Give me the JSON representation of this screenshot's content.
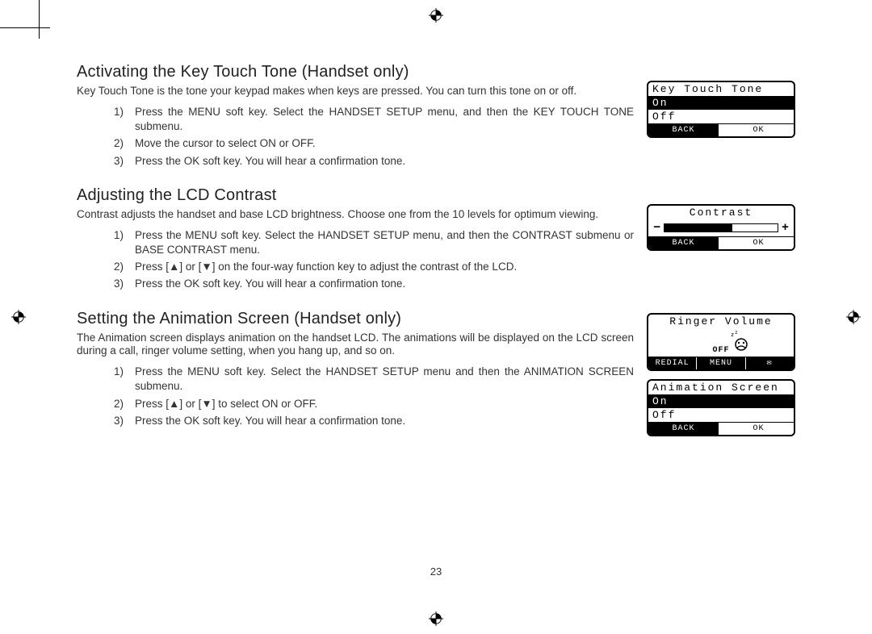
{
  "page_number": "23",
  "sections": [
    {
      "heading": "Activating the Key Touch Tone (Handset only)",
      "intro": "Key Touch Tone is the tone your keypad makes when keys are pressed. You can turn this tone on or off.",
      "steps": [
        "Press the MENU soft key. Select the HANDSET SETUP menu, and then the KEY TOUCH TONE submenu.",
        "Move the cursor to select ON or OFF.",
        "Press the OK soft key. You will hear a confirmation tone."
      ]
    },
    {
      "heading": "Adjusting the LCD Contrast",
      "intro": "Contrast adjusts the handset and base LCD brightness. Choose one from the 10 levels for optimum viewing.",
      "steps": [
        "Press the MENU soft key. Select the HANDSET SETUP menu, and then the CONTRAST submenu or BASE CONTRAST menu.",
        "Press [▲] or [▼] on the four-way function key to adjust the contrast of the LCD.",
        "Press the OK soft key. You will hear a confirmation tone."
      ]
    },
    {
      "heading": "Setting the Animation Screen (Handset only)",
      "intro": "The Animation screen displays animation on the handset LCD. The animations will be displayed on the LCD screen during a call, ringer volume setting, when you hang up, and so on.",
      "steps": [
        "Press the MENU soft key. Select the HANDSET SETUP menu and then the ANIMATION SCREEN submenu.",
        "Press [▲] or [▼] to select ON or OFF.",
        "Press the OK soft key. You will hear a confirmation tone."
      ]
    }
  ],
  "lcd_screens": {
    "key_touch_tone": {
      "title": "Key Touch Tone",
      "options": [
        "On",
        "Off"
      ],
      "selected_index": 0,
      "softkeys": [
        "BACK",
        "OK"
      ]
    },
    "contrast": {
      "title": "Contrast",
      "fill_percent": 60,
      "minus": "−",
      "plus": "+",
      "softkeys": [
        "BACK",
        "OK"
      ]
    },
    "ringer_volume": {
      "title": "Ringer Volume",
      "off_label": "OFF",
      "softkeys": [
        "REDIAL",
        "MENU",
        "✉"
      ]
    },
    "animation_screen": {
      "title": "Animation Screen",
      "options": [
        "On",
        "Off"
      ],
      "selected_index": 0,
      "softkeys": [
        "BACK",
        "OK"
      ]
    }
  },
  "colors": {
    "text": "#333333",
    "lcd_fg": "#000000",
    "lcd_bg": "#ffffff",
    "background": "#ffffff"
  }
}
